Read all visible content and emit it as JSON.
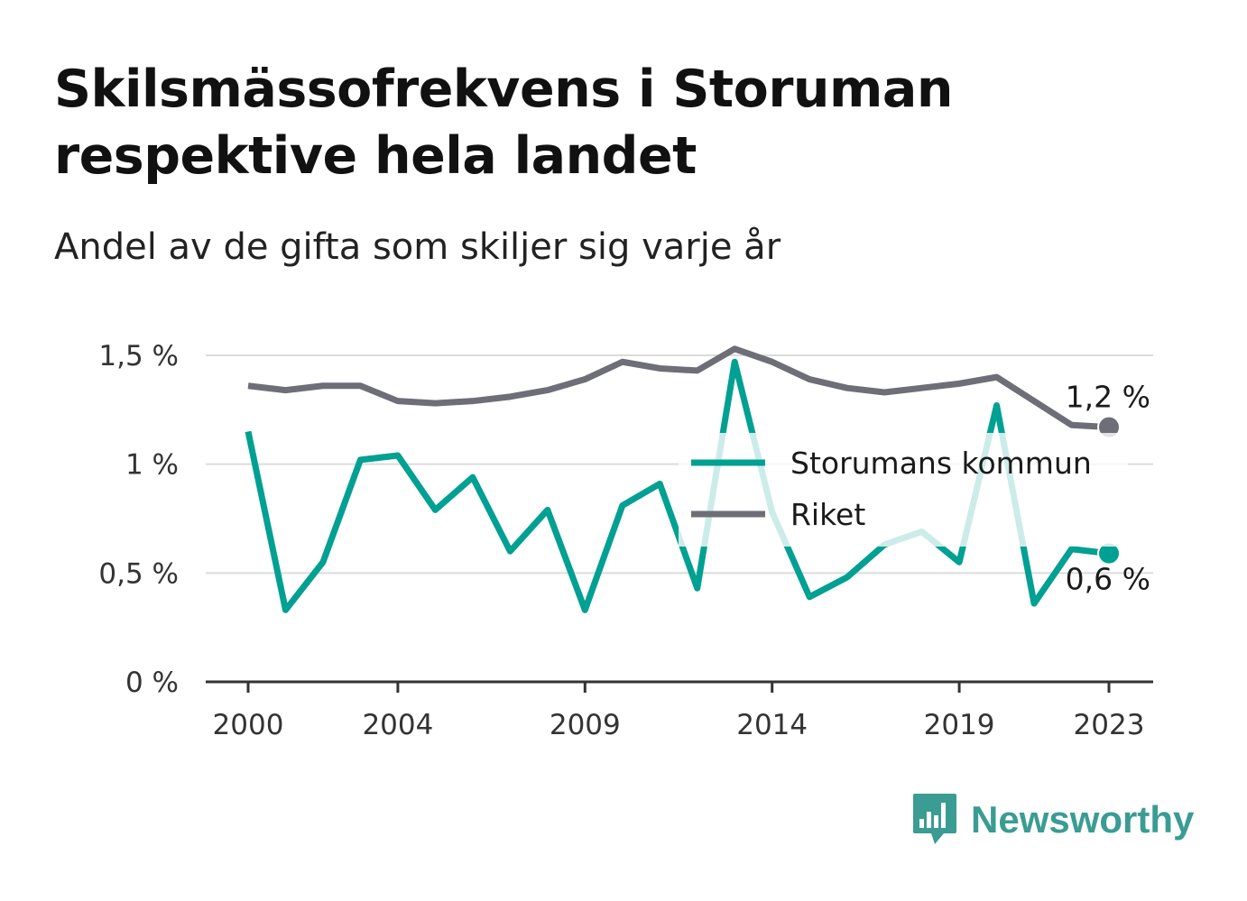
{
  "header": {
    "title": "Skilsmässofrekvens i Storuman respektive hela landet",
    "subtitle": "Andel av de gifta som skiljer sig varje år"
  },
  "brand": {
    "name": "Newsworthy",
    "icon": "bar-chart-speech-bubble-icon",
    "color": "#3a9c92"
  },
  "chart_data": {
    "type": "line",
    "x": [
      2000,
      2001,
      2002,
      2003,
      2004,
      2005,
      2006,
      2007,
      2008,
      2009,
      2010,
      2011,
      2012,
      2013,
      2014,
      2015,
      2016,
      2017,
      2018,
      2019,
      2020,
      2021,
      2022,
      2023
    ],
    "x_ticks": [
      2000,
      2004,
      2009,
      2014,
      2019,
      2023
    ],
    "x_tick_labels": [
      "2000",
      "2004",
      "2009",
      "2014",
      "2019",
      "2023"
    ],
    "y_ticks": [
      0,
      0.5,
      1,
      1.5
    ],
    "y_tick_labels": [
      "0 %",
      "0,5 %",
      "1 %",
      "1,5 %"
    ],
    "ylim": [
      0,
      1.55
    ],
    "grid": true,
    "legend_position": "center-right",
    "series": [
      {
        "name": "Storumans kommun",
        "color": "#00a092",
        "values": [
          1.15,
          0.33,
          0.55,
          1.02,
          1.04,
          0.79,
          0.94,
          0.6,
          0.79,
          0.33,
          0.81,
          0.91,
          0.43,
          1.47,
          0.78,
          0.39,
          0.48,
          0.63,
          0.69,
          0.55,
          1.27,
          0.36,
          0.61,
          0.59
        ],
        "end_label": "0,6 %"
      },
      {
        "name": "Riket",
        "color": "#6e6e78",
        "values": [
          1.36,
          1.34,
          1.36,
          1.36,
          1.29,
          1.28,
          1.29,
          1.31,
          1.34,
          1.39,
          1.47,
          1.44,
          1.43,
          1.53,
          1.47,
          1.39,
          1.35,
          1.33,
          1.35,
          1.37,
          1.4,
          1.29,
          1.18,
          1.17
        ],
        "end_label": "1,2 %"
      }
    ]
  }
}
